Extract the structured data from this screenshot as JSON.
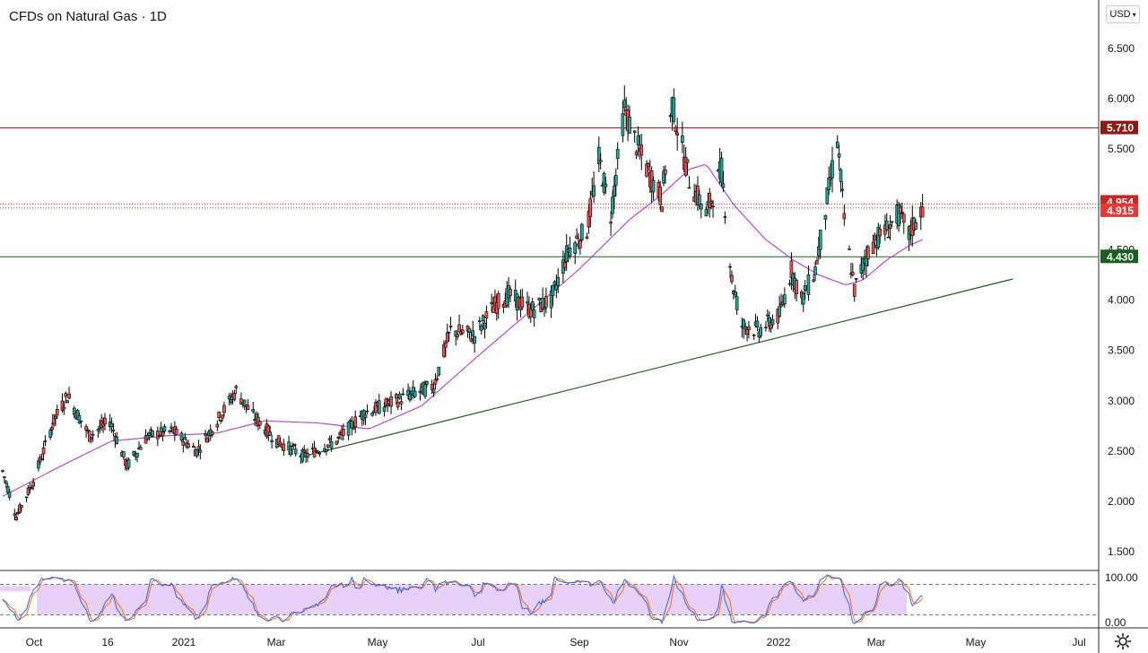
{
  "header": {
    "title": "CFDs on Natural Gas · 1D",
    "currency": "USD"
  },
  "colors": {
    "up": "#26a69a",
    "down": "#ef5350",
    "wick": "#000000",
    "resistance": "#8b1a1a",
    "support": "#1b5e20",
    "ma": "#b44cc4",
    "stoch_k": "#2962ff",
    "stoch_d": "#ff6d00",
    "stoch_band": "#d9b3f5"
  },
  "chart_data": {
    "type": "candlestick",
    "title": "CFDs on Natural Gas · 1D",
    "y_ticks": [
      "6.500",
      "6.000",
      "5.500",
      "5.000",
      "4.500",
      "4.000",
      "3.500",
      "3.000",
      "2.500",
      "2.000",
      "1.500"
    ],
    "ylim": [
      1.3,
      6.9
    ],
    "x_ticks": [
      "Oct",
      "16",
      "2021",
      "Mar",
      "May",
      "Jul",
      "Sep",
      "Nov",
      "2022",
      "Mar",
      "May",
      "Jul"
    ],
    "price_anchors": [
      [
        "2020-09-28",
        2.3
      ],
      [
        "2020-10-06",
        1.85
      ],
      [
        "2020-10-16",
        2.2
      ],
      [
        "2020-10-28",
        2.8
      ],
      [
        "2020-11-05",
        3.05
      ],
      [
        "2020-11-18",
        2.65
      ],
      [
        "2020-11-30",
        2.8
      ],
      [
        "2020-12-10",
        2.35
      ],
      [
        "2020-12-22",
        2.65
      ],
      [
        "2021-01-06",
        2.7
      ],
      [
        "2021-01-20",
        2.5
      ],
      [
        "2021-02-01",
        2.8
      ],
      [
        "2021-02-12",
        3.1
      ],
      [
        "2021-02-22",
        2.85
      ],
      [
        "2021-03-08",
        2.6
      ],
      [
        "2021-03-24",
        2.45
      ],
      [
        "2021-04-12",
        2.6
      ],
      [
        "2021-04-28",
        2.88
      ],
      [
        "2021-05-10",
        2.95
      ],
      [
        "2021-05-24",
        3.05
      ],
      [
        "2021-06-08",
        3.15
      ],
      [
        "2021-06-18",
        3.7
      ],
      [
        "2021-07-02",
        3.65
      ],
      [
        "2021-07-14",
        3.95
      ],
      [
        "2021-07-22",
        4.05
      ],
      [
        "2021-08-04",
        3.9
      ],
      [
        "2021-08-16",
        4.0
      ],
      [
        "2021-08-26",
        4.5
      ],
      [
        "2021-09-06",
        4.7
      ],
      [
        "2021-09-13",
        5.4
      ],
      [
        "2021-09-20",
        4.85
      ],
      [
        "2021-09-28",
        5.9
      ],
      [
        "2021-10-06",
        5.5
      ],
      [
        "2021-10-14",
        5.2
      ],
      [
        "2021-10-20",
        5.0
      ],
      [
        "2021-10-26",
        5.95
      ],
      [
        "2021-11-05",
        5.2
      ],
      [
        "2021-11-15",
        4.85
      ],
      [
        "2021-11-24",
        5.3
      ],
      [
        "2021-11-30",
        4.2
      ],
      [
        "2021-12-06",
        3.75
      ],
      [
        "2021-12-16",
        3.7
      ],
      [
        "2021-12-28",
        3.85
      ],
      [
        "2022-01-04",
        4.3
      ],
      [
        "2022-01-10",
        4.0
      ],
      [
        "2022-01-18",
        4.3
      ],
      [
        "2022-01-25",
        5.0
      ],
      [
        "2022-01-31",
        5.6
      ],
      [
        "2022-02-04",
        4.8
      ],
      [
        "2022-02-10",
        4.1
      ],
      [
        "2022-02-16",
        4.4
      ],
      [
        "2022-02-22",
        4.6
      ],
      [
        "2022-03-01",
        4.7
      ],
      [
        "2022-03-08",
        4.85
      ],
      [
        "2022-03-14",
        4.65
      ],
      [
        "2022-03-22",
        4.92
      ]
    ],
    "ma_anchors": [
      [
        "2020-09-28",
        2.05
      ],
      [
        "2020-11-01",
        2.35
      ],
      [
        "2020-12-01",
        2.6
      ],
      [
        "2021-01-01",
        2.65
      ],
      [
        "2021-02-01",
        2.68
      ],
      [
        "2021-03-01",
        2.8
      ],
      [
        "2021-04-01",
        2.78
      ],
      [
        "2021-05-01",
        2.72
      ],
      [
        "2021-06-01",
        2.95
      ],
      [
        "2021-07-01",
        3.4
      ],
      [
        "2021-08-01",
        3.85
      ],
      [
        "2021-09-01",
        4.3
      ],
      [
        "2021-10-01",
        4.8
      ],
      [
        "2021-10-20",
        5.05
      ],
      [
        "2021-11-05",
        5.3
      ],
      [
        "2021-11-15",
        5.35
      ],
      [
        "2021-12-01",
        4.95
      ],
      [
        "2021-12-20",
        4.6
      ],
      [
        "2022-01-05",
        4.4
      ],
      [
        "2022-01-20",
        4.25
      ],
      [
        "2022-02-05",
        4.15
      ],
      [
        "2022-02-15",
        4.2
      ],
      [
        "2022-03-01",
        4.4
      ],
      [
        "2022-03-15",
        4.55
      ],
      [
        "2022-03-22",
        4.6
      ]
    ],
    "horizontal_levels": [
      {
        "value": 5.71,
        "label": "5.710",
        "style": "solid",
        "role": "resistance"
      },
      {
        "value": 4.954,
        "label": "4.954",
        "style": "dotted",
        "role": "last"
      },
      {
        "value": 4.915,
        "label": "4.915",
        "style": "dotted",
        "role": "last2"
      },
      {
        "value": 4.43,
        "label": "4.430",
        "style": "solid",
        "role": "support"
      }
    ],
    "trendline": {
      "from": [
        "2021-03-24",
        2.45
      ],
      "to": [
        "2022-05-14",
        4.21
      ]
    },
    "oscillator": {
      "type": "stochastic",
      "upper": 80,
      "lower": 20,
      "y_ticks": [
        "100.00",
        "0.00"
      ]
    }
  }
}
